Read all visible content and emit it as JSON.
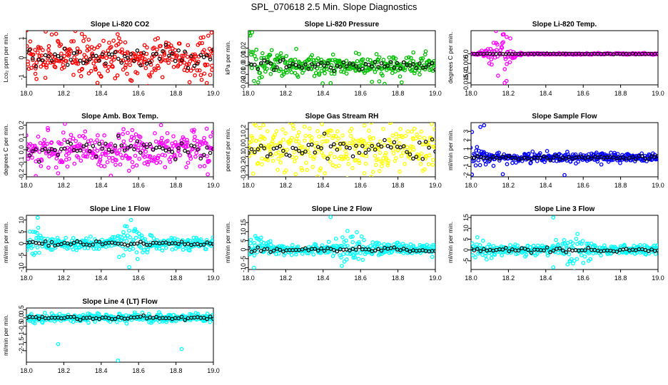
{
  "page": {
    "title": "SPL_070618  2.5 Min. Slope Diagnostics"
  },
  "chart_data": [
    {
      "type": "scatter",
      "title": "Slope Li-820 CO2",
      "xlabel": "",
      "ylabel": "Lco₂ ppm per min.",
      "x_range": [
        18.0,
        19.0
      ],
      "ylim": [
        -1.4,
        1.4
      ],
      "yticks": [
        -1,
        0,
        1
      ],
      "xticks": [
        18.0,
        18.2,
        18.4,
        18.6,
        18.8,
        19.0
      ],
      "color": "#ff0000",
      "pattern": "noise",
      "spread": 0.55,
      "outliers": [
        [
          18.38,
          -1.3
        ],
        [
          18.99,
          1.3
        ]
      ]
    },
    {
      "type": "scatter",
      "title": "Slope Li-820 Pressure",
      "xlabel": "",
      "ylabel": "kPa per min.",
      "x_range": [
        18.0,
        19.0
      ],
      "ylim": [
        -0.022,
        0.04
      ],
      "yticks": [
        -0.02,
        -0.01,
        0.0,
        0.01,
        0.02
      ],
      "xticks": [
        18.0,
        18.2,
        18.4,
        18.6,
        18.8,
        19.0
      ],
      "color": "#00c000",
      "pattern": "decay",
      "spread": 0.006,
      "outliers": [
        [
          18.02,
          0.038
        ],
        [
          18.44,
          -0.02
        ],
        [
          18.7,
          -0.018
        ]
      ]
    },
    {
      "type": "scatter",
      "title": "Slope Li-820 Temp.",
      "xlabel": "",
      "ylabel": "degrees C per min.",
      "x_range": [
        18.0,
        19.0
      ],
      "ylim": [
        -0.016,
        0.012
      ],
      "yticks": [
        -0.015,
        -0.01,
        -0.005,
        0.0
      ],
      "xticks": [
        18.0,
        18.2,
        18.4,
        18.6,
        18.8,
        19.0
      ],
      "color": "#ff00ff",
      "pattern": "flat",
      "spread": 0.0002,
      "outliers": [
        [
          18.18,
          -0.015
        ],
        [
          18.19,
          -0.014
        ],
        [
          18.21,
          0.008
        ],
        [
          18.17,
          0.01
        ]
      ]
    },
    {
      "type": "scatter",
      "title": "Slope Amb. Box Temp.",
      "xlabel": "",
      "ylabel": "degrees C per min.",
      "x_range": [
        18.0,
        19.0
      ],
      "ylim": [
        -0.22,
        0.22
      ],
      "yticks": [
        -0.2,
        -0.1,
        0.0,
        0.1,
        0.2
      ],
      "xticks": [
        18.0,
        18.2,
        18.4,
        18.6,
        18.8,
        19.0
      ],
      "color": "#ff00ff",
      "pattern": "noise",
      "spread": 0.08,
      "outliers": [
        [
          18.72,
          0.2
        ],
        [
          18.97,
          -0.2
        ]
      ]
    },
    {
      "type": "scatter",
      "title": "Slope Gas Stream RH",
      "xlabel": "",
      "ylabel": "percent per min.",
      "x_range": [
        18.0,
        19.0
      ],
      "ylim": [
        -0.32,
        0.27
      ],
      "yticks": [
        -0.3,
        -0.2,
        -0.1,
        0.0,
        0.1,
        0.2
      ],
      "xticks": [
        18.0,
        18.2,
        18.4,
        18.6,
        18.8,
        19.0
      ],
      "color": "#ffff00",
      "pattern": "noise",
      "spread": 0.13,
      "outliers": [
        [
          18.62,
          0.24
        ],
        [
          18.62,
          -0.28
        ]
      ]
    },
    {
      "type": "scatter",
      "title": "Slope Sample Flow",
      "xlabel": "",
      "ylabel": "ml/min per min.",
      "x_range": [
        18.0,
        19.0
      ],
      "ylim": [
        -2.2,
        4.0
      ],
      "yticks": [
        -2,
        -1,
        0,
        1,
        2,
        3
      ],
      "xticks": [
        18.0,
        18.2,
        18.4,
        18.6,
        18.8,
        19.0
      ],
      "color": "#0000ff",
      "pattern": "decay",
      "spread": 0.25,
      "outliers": [
        [
          18.05,
          3.5
        ],
        [
          18.07,
          3.7
        ],
        [
          18.17,
          -1.9
        ],
        [
          18.5,
          -2.0
        ]
      ]
    },
    {
      "type": "scatter",
      "title": "Slope Line 1 Flow",
      "xlabel": "",
      "ylabel": "ml/min per min.",
      "x_range": [
        18.0,
        19.0
      ],
      "ylim": [
        -11,
        12
      ],
      "yticks": [
        -10,
        -5,
        0,
        5,
        10
      ],
      "xticks": [
        18.0,
        18.2,
        18.4,
        18.6,
        18.8,
        19.0
      ],
      "color": "#00ffff",
      "pattern": "burst",
      "spread": 1.2,
      "outliers": [
        [
          18.06,
          11
        ],
        [
          18.55,
          -10
        ],
        [
          18.56,
          10
        ]
      ]
    },
    {
      "type": "scatter",
      "title": "Slope Line 2 Flow",
      "xlabel": "",
      "ylabel": "ml/min per min.",
      "x_range": [
        18.0,
        19.0
      ],
      "ylim": [
        -11,
        19
      ],
      "yticks": [
        -10,
        -5,
        0,
        5,
        10,
        15
      ],
      "xticks": [
        18.0,
        18.2,
        18.4,
        18.6,
        18.8,
        19.0
      ],
      "color": "#00ffff",
      "pattern": "burst",
      "spread": 1.5,
      "outliers": [
        [
          18.44,
          18
        ],
        [
          18.03,
          -10
        ],
        [
          18.5,
          -9
        ]
      ]
    },
    {
      "type": "scatter",
      "title": "Slope Line 3 Flow",
      "xlabel": "",
      "ylabel": "ml/min per min.",
      "x_range": [
        18.0,
        19.0
      ],
      "ylim": [
        -9,
        16
      ],
      "yticks": [
        -5,
        0,
        5,
        10,
        15
      ],
      "xticks": [
        18.0,
        18.2,
        18.4,
        18.6,
        18.8,
        19.0
      ],
      "color": "#00ffff",
      "pattern": "burst",
      "spread": 1.2,
      "outliers": [
        [
          18.44,
          15
        ],
        [
          18.44,
          -8
        ]
      ]
    },
    {
      "type": "scatter",
      "title": "Slope Line 4 (LT) Flow",
      "xlabel": "",
      "ylabel": "ml/min per min.",
      "x_range": [
        18.0,
        19.0
      ],
      "ylim": [
        -2.7,
        0.6
      ],
      "yticks": [
        -2.0,
        -1.5,
        -1.0,
        -0.5,
        0.0,
        0.5
      ],
      "xticks": [
        18.0,
        18.2,
        18.4,
        18.6,
        18.8,
        19.0
      ],
      "color": "#00ffff",
      "pattern": "noise",
      "spread": 0.12,
      "outliers": [
        [
          18.17,
          -1.6
        ],
        [
          18.49,
          -2.6
        ],
        [
          18.83,
          -1.9
        ]
      ]
    }
  ]
}
